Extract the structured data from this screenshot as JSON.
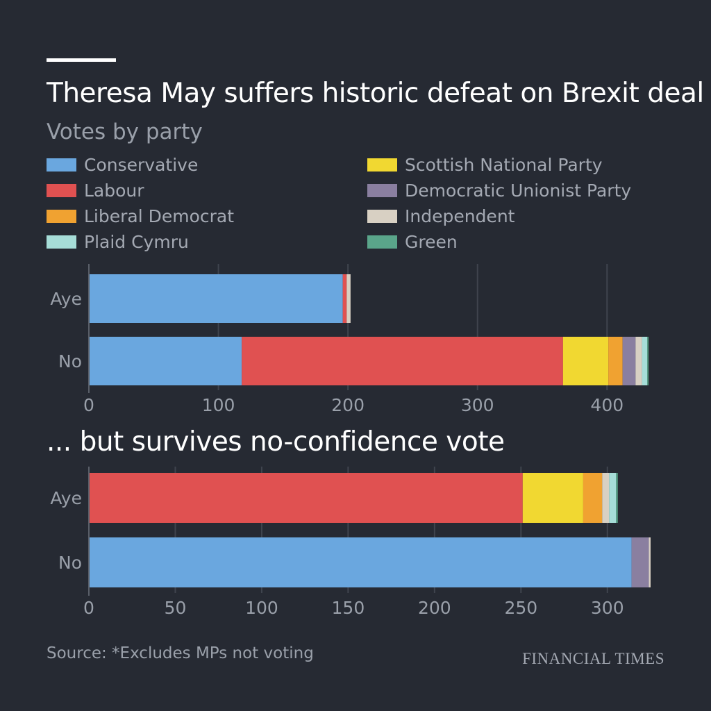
{
  "title": "Theresa May suffers historic defeat on Brexit deal ...",
  "subtitle": "Votes by party",
  "section_title": "... but survives no-confidence vote",
  "source": "Source: *Excludes MPs not voting",
  "brand": "FINANCIAL TIMES",
  "colors": {
    "background": "#262a33",
    "grid": "#3f444e",
    "tick": "#9aa0aa"
  },
  "legend": [
    {
      "label": "Conservative",
      "color": "#6aa7df"
    },
    {
      "label": "Labour",
      "color": "#e05151"
    },
    {
      "label": "Liberal Democrat",
      "color": "#f0a231"
    },
    {
      "label": "Plaid Cymru",
      "color": "#a6ddd8"
    },
    {
      "label": "Scottish National Party",
      "color": "#f1d831"
    },
    {
      "label": "Democratic Unionist Party",
      "color": "#8a7fa0"
    },
    {
      "label": "Independent",
      "color": "#d8d0c3"
    },
    {
      "label": "Green",
      "color": "#5aa58a"
    }
  ],
  "chart_data": [
    {
      "type": "bar",
      "orientation": "horizontal",
      "stacked": true,
      "categories": [
        "Aye",
        "No"
      ],
      "series": [
        {
          "name": "Conservative",
          "values": [
            196,
            118
          ]
        },
        {
          "name": "Labour",
          "values": [
            3,
            248
          ]
        },
        {
          "name": "Independent",
          "values": [
            3,
            0
          ]
        },
        {
          "name": "Scottish National Party",
          "values": [
            0,
            35
          ]
        },
        {
          "name": "Liberal Democrat",
          "values": [
            0,
            11
          ]
        },
        {
          "name": "Democratic Unionist Party",
          "values": [
            0,
            10
          ]
        },
        {
          "name": "Independent",
          "values": [
            0,
            5
          ]
        },
        {
          "name": "Plaid Cymru",
          "values": [
            0,
            4
          ]
        },
        {
          "name": "Green",
          "values": [
            0,
            1
          ]
        }
      ],
      "xlim": [
        0,
        432
      ],
      "xticks": [
        0,
        100,
        200,
        300,
        400
      ],
      "grid": true
    },
    {
      "type": "bar",
      "orientation": "horizontal",
      "stacked": true,
      "categories": [
        "Aye",
        "No"
      ],
      "series": [
        {
          "name": "Labour",
          "values": [
            251,
            0
          ]
        },
        {
          "name": "Scottish National Party",
          "values": [
            35,
            0
          ]
        },
        {
          "name": "Liberal Democrat",
          "values": [
            11,
            0
          ]
        },
        {
          "name": "Independent",
          "values": [
            4,
            0
          ]
        },
        {
          "name": "Plaid Cymru",
          "values": [
            4,
            0
          ]
        },
        {
          "name": "Green",
          "values": [
            1,
            0
          ]
        },
        {
          "name": "Conservative",
          "values": [
            0,
            314
          ]
        },
        {
          "name": "Democratic Unionist Party",
          "values": [
            0,
            10
          ]
        },
        {
          "name": "Independent",
          "values": [
            0,
            1
          ]
        }
      ],
      "xlim": [
        0,
        325
      ],
      "xticks": [
        0,
        50,
        100,
        150,
        200,
        250,
        300
      ],
      "grid": true
    }
  ]
}
